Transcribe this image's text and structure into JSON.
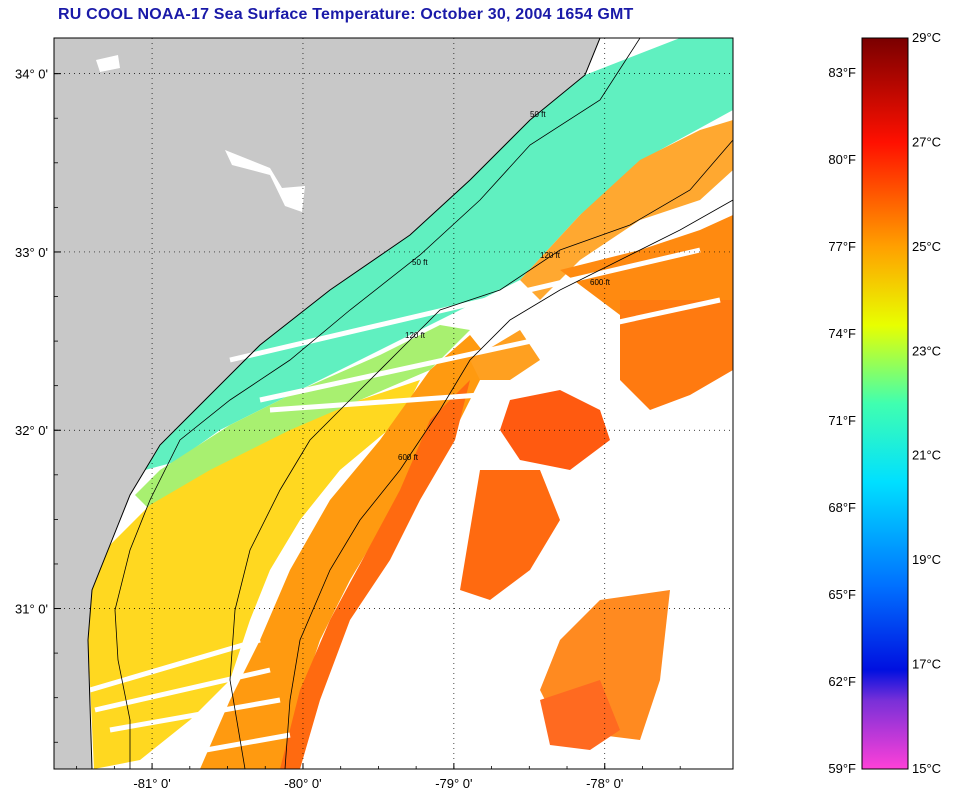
{
  "title": "RU COOL  NOAA-17  Sea Surface Temperature:  October 30, 2004 1654 GMT",
  "map": {
    "lon_range": [
      -81.65,
      -77.15
    ],
    "lat_range": [
      30.1,
      34.2
    ],
    "lon_ticks": [
      {
        "value": -81,
        "label": "-81° 0'"
      },
      {
        "value": -80,
        "label": "-80° 0'"
      },
      {
        "value": -79,
        "label": "-79° 0'"
      },
      {
        "value": -78,
        "label": "-78° 0'"
      }
    ],
    "lat_ticks": [
      {
        "value": 34,
        "label": "34° 0'"
      },
      {
        "value": 33,
        "label": "33° 0'"
      },
      {
        "value": 32,
        "label": "32° 0'"
      },
      {
        "value": 31,
        "label": "31° 0'"
      }
    ],
    "land_color": "#c8c8c8",
    "no_data_color": "#ffffff",
    "contours": [
      {
        "name": "50 ft",
        "label": "50 ft",
        "color": "#000000"
      },
      {
        "name": "120 ft",
        "label": "120 ft",
        "color": "#000000"
      },
      {
        "name": "600 ft",
        "label": "600 ft",
        "color": "#000000"
      }
    ]
  },
  "colorbar": {
    "celsius_labels": [
      "29°C",
      "27°C",
      "25°C",
      "23°C",
      "21°C",
      "19°C",
      "17°C",
      "15°C"
    ],
    "fahrenheit_labels": [
      "83°F",
      "80°F",
      "77°F",
      "74°F",
      "71°F",
      "68°F",
      "65°F",
      "62°F",
      "59°F"
    ],
    "min_c": 15,
    "max_c": 29,
    "stops": [
      {
        "c": 15,
        "color": "#ff40d8"
      },
      {
        "c": 16.3,
        "color": "#7a30d8"
      },
      {
        "c": 16.9,
        "color": "#0010e0"
      },
      {
        "c": 18.5,
        "color": "#0070ff"
      },
      {
        "c": 20.5,
        "color": "#00e0ff"
      },
      {
        "c": 22,
        "color": "#40ffb0"
      },
      {
        "c": 23.5,
        "color": "#e8ff00"
      },
      {
        "c": 25,
        "color": "#ffa000"
      },
      {
        "c": 27,
        "color": "#ff1000"
      },
      {
        "c": 29,
        "color": "#7a0000"
      }
    ]
  }
}
